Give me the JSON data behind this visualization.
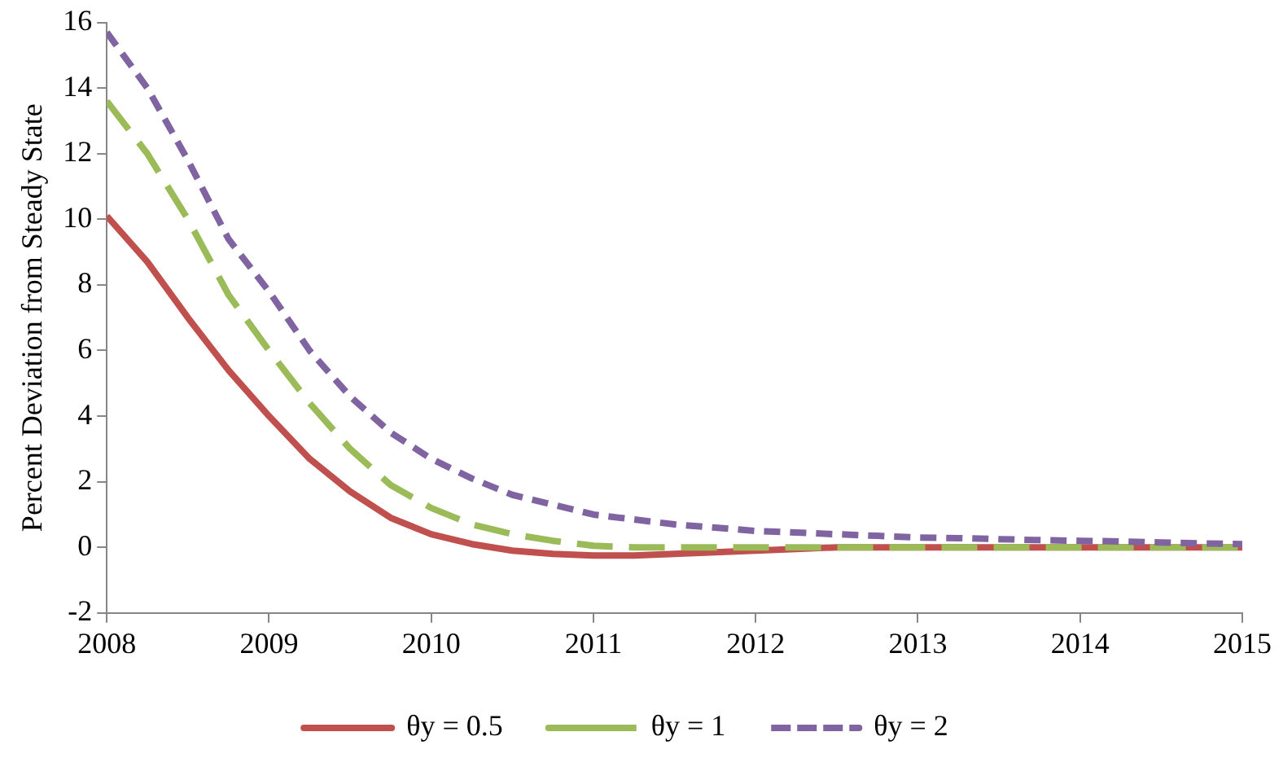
{
  "chart_data": {
    "type": "line",
    "ylabel": "Percent Deviation from Steady State",
    "x": [
      2008,
      2008.25,
      2008.5,
      2008.75,
      2009,
      2009.25,
      2009.5,
      2009.75,
      2010,
      2010.25,
      2010.5,
      2010.75,
      2011,
      2011.25,
      2011.5,
      2011.75,
      2012,
      2012.25,
      2012.5,
      2012.75,
      2013,
      2013.25,
      2013.5,
      2013.75,
      2014,
      2014.25,
      2014.5,
      2014.75,
      2015
    ],
    "series": [
      {
        "name": "θy = 0.5",
        "color": "#c0504d",
        "line_style": "solid",
        "values": [
          10.1,
          8.7,
          7.0,
          5.4,
          4.0,
          2.7,
          1.7,
          0.9,
          0.4,
          0.1,
          -0.1,
          -0.2,
          -0.25,
          -0.25,
          -0.2,
          -0.15,
          -0.1,
          -0.05,
          0,
          0,
          0,
          0,
          0,
          0,
          0,
          0,
          0,
          0,
          0
        ]
      },
      {
        "name": "θy = 1",
        "color": "#9bbb59",
        "line_style": "dashed",
        "values": [
          13.6,
          12.0,
          10.0,
          7.7,
          6.0,
          4.4,
          3.0,
          1.9,
          1.2,
          0.7,
          0.4,
          0.2,
          0.05,
          0,
          0,
          0,
          0,
          0,
          0,
          0,
          0,
          0,
          0,
          0,
          0,
          0,
          0,
          0,
          0
        ]
      },
      {
        "name": "θy = 2",
        "color": "#8064a2",
        "line_style": "dotted",
        "values": [
          15.7,
          14.0,
          11.8,
          9.4,
          7.8,
          6.0,
          4.6,
          3.5,
          2.7,
          2.1,
          1.6,
          1.3,
          1.0,
          0.85,
          0.7,
          0.6,
          0.5,
          0.45,
          0.4,
          0.35,
          0.3,
          0.28,
          0.25,
          0.22,
          0.2,
          0.18,
          0.15,
          0.12,
          0.1
        ]
      }
    ],
    "xlim": [
      2008,
      2015
    ],
    "xticks": [
      2008,
      2009,
      2010,
      2011,
      2012,
      2013,
      2014,
      2015
    ],
    "ylim": [
      -2,
      16
    ],
    "yticks": [
      -2,
      0,
      2,
      4,
      6,
      8,
      10,
      12,
      14,
      16
    ],
    "grid": false,
    "legend": "bottom",
    "marker": "none"
  }
}
